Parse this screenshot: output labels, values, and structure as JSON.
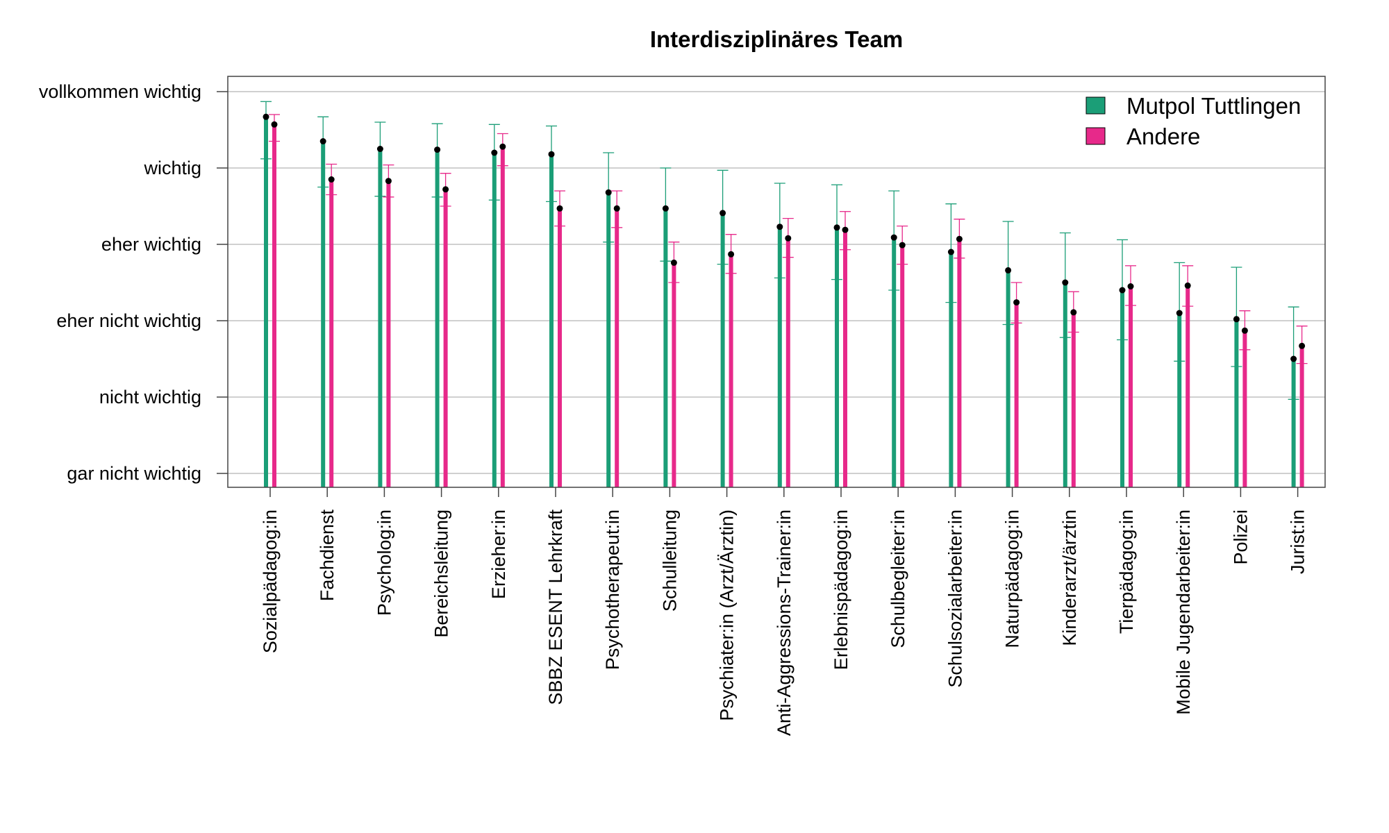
{
  "chart_data": {
    "type": "bar",
    "title": "Interdisziplinäres Team",
    "xlabel": "",
    "ylabel": "",
    "ylim": [
      0,
      5
    ],
    "y_tick_values": [
      0,
      1,
      2,
      3,
      4,
      5
    ],
    "y_tick_labels": [
      "gar nicht wichtig",
      "nicht wichtig",
      "eher nicht wichtig",
      "eher wichtig",
      "wichtig",
      "vollkommen wichtig"
    ],
    "grid": true,
    "legend_position": "top-right",
    "categories": [
      "Sozialpädagog:in",
      "Fachdienst",
      "Psycholog:in",
      "Bereichsleitung",
      "Erzieher:in",
      "SBBZ ESENT Lehrkraft",
      "Psychotherapeut:in",
      "Schulleitung",
      "Psychiater:in (Arzt/Ärztin)",
      "Anti-Aggressions-Trainer:in",
      "Erlebnispädagog:in",
      "Schulbegleiter:in",
      "Schulsozialarbeiter:in",
      "Naturpädagog:in",
      "Kinderarzt/ärztin",
      "Tierpädagog:in",
      "Mobile Jugendarbeiter:in",
      "Polizei",
      "Jurist:in"
    ],
    "series": [
      {
        "name": "Mutpol Tuttlingen",
        "color": "#1b9e77",
        "values": [
          4.67,
          4.35,
          4.25,
          4.24,
          4.2,
          4.18,
          3.68,
          3.47,
          3.41,
          3.23,
          3.22,
          3.09,
          2.9,
          2.66,
          2.5,
          2.4,
          2.1,
          2.02,
          1.5
        ],
        "error_low": [
          4.12,
          3.75,
          3.63,
          3.62,
          3.58,
          3.56,
          3.03,
          2.78,
          2.74,
          2.56,
          2.54,
          2.4,
          2.24,
          1.95,
          1.78,
          1.75,
          1.47,
          1.4,
          0.97
        ],
        "error_high": [
          4.87,
          4.67,
          4.6,
          4.58,
          4.57,
          4.55,
          4.2,
          4.0,
          3.97,
          3.8,
          3.78,
          3.7,
          3.53,
          3.3,
          3.15,
          3.06,
          2.76,
          2.7,
          2.18
        ]
      },
      {
        "name": "Andere",
        "color": "#e7298a",
        "values": [
          4.57,
          3.85,
          3.83,
          3.72,
          4.28,
          3.47,
          3.47,
          2.76,
          2.87,
          3.08,
          3.19,
          2.99,
          3.07,
          2.24,
          2.11,
          2.45,
          2.46,
          1.87,
          1.67
        ],
        "error_low": [
          4.35,
          3.65,
          3.62,
          3.5,
          4.03,
          3.24,
          3.22,
          2.5,
          2.62,
          2.83,
          2.93,
          2.74,
          2.82,
          1.97,
          1.85,
          2.2,
          2.19,
          1.62,
          1.44
        ],
        "error_high": [
          4.7,
          4.05,
          4.04,
          3.93,
          4.45,
          3.7,
          3.7,
          3.03,
          3.13,
          3.34,
          3.43,
          3.24,
          3.33,
          2.5,
          2.38,
          2.72,
          2.72,
          2.13,
          1.93
        ]
      }
    ]
  }
}
